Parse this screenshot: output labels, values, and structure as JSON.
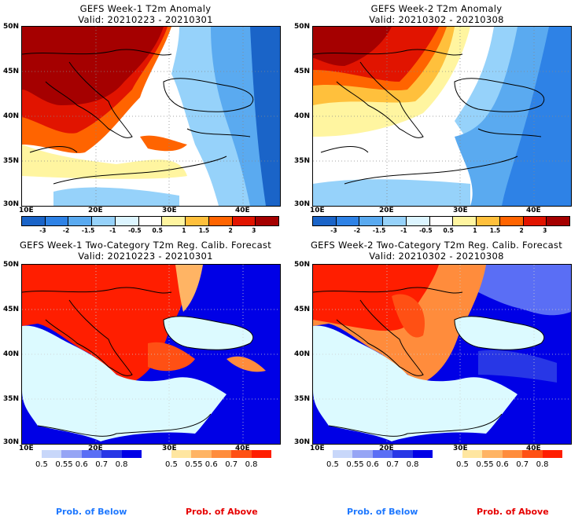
{
  "panels": [
    {
      "id": "week1-anomaly",
      "title": "GEFS Week-1 T2m Anomaly",
      "valid": "Valid: 20210223 - 20210301",
      "type": "anomaly"
    },
    {
      "id": "week2-anomaly",
      "title": "GEFS Week-2 T2m Anomaly",
      "valid": "Valid: 20210302 - 20210308",
      "type": "anomaly"
    },
    {
      "id": "week1-prob",
      "title": "GEFS Week-1 Two-Category T2m Reg. Calib. Forecast",
      "valid": "Valid: 20210223 - 20210301",
      "type": "probability"
    },
    {
      "id": "week2-prob",
      "title": "GEFS Week-2 Two-Category T2m Reg. Calib. Forecast",
      "valid": "Valid: 20210302 - 20210308",
      "type": "probability"
    }
  ],
  "axes": {
    "lat_labels": [
      "50N",
      "45N",
      "40N",
      "35N",
      "30N"
    ],
    "lon_labels": [
      "10E",
      "20E",
      "30E",
      "40E"
    ],
    "lat_range": [
      30,
      50
    ],
    "lon_range": [
      10,
      45
    ]
  },
  "anomaly_colorbar": {
    "labels": [
      "-3",
      "-2",
      "-1.5",
      "-1",
      "-0.5",
      "0.5",
      "1",
      "1.5",
      "2",
      "3"
    ],
    "colors": [
      "#1a64c8",
      "#2e82e6",
      "#5aaaf0",
      "#96d2fa",
      "#dcf5ff",
      "#ffffff",
      "#fff5a0",
      "#ffc03c",
      "#ff6400",
      "#e11400",
      "#a50000"
    ]
  },
  "prob_colorbars": {
    "below": {
      "labels": [
        "0.5",
        "0.55",
        "0.6",
        "0.7",
        "0.8"
      ],
      "colors": [
        "#c8d7fa",
        "#96a5f5",
        "#5a6ef5",
        "#2837e6",
        "#0000e6"
      ]
    },
    "above": {
      "labels": [
        "0.5",
        "0.55",
        "0.6",
        "0.7",
        "0.8"
      ],
      "colors": [
        "#ffe6a0",
        "#ffb464",
        "#ff8c3c",
        "#ff5014",
        "#ff1e00"
      ]
    }
  },
  "footer": {
    "below_label": "Prob. of Below",
    "above_label": "Prob. of Above",
    "below_color": "#1e78ff",
    "above_color": "#e60000"
  },
  "chart_data": [
    {
      "type": "heatmap",
      "title": "GEFS Week-1 T2m Anomaly",
      "subtitle": "Valid: 20210223 - 20210301",
      "xlabel": "Longitude",
      "ylabel": "Latitude",
      "xlim": [
        10,
        45
      ],
      "ylim": [
        30,
        50
      ],
      "summary": "Strong warm anomaly (>3) over central/eastern Europe and Balkans; cold anomaly (-1 to -3) over Black Sea, Turkey and eastern region"
    },
    {
      "type": "heatmap",
      "title": "GEFS Week-2 T2m Anomaly",
      "subtitle": "Valid: 20210302 - 20210308",
      "xlabel": "Longitude",
      "ylabel": "Latitude",
      "xlim": [
        10,
        45
      ],
      "ylim": [
        30,
        50
      ],
      "summary": "Warm anomaly (1 to 3) over Balkans and central Europe; cold anomaly (-0.5 to -3) over Turkey, Black Sea and Middle East"
    },
    {
      "type": "heatmap",
      "title": "GEFS Week-1 Two-Category T2m Reg. Calib. Forecast",
      "subtitle": "Valid: 20210223 - 20210301",
      "xlim": [
        10,
        45
      ],
      "ylim": [
        30,
        50
      ],
      "summary": "Prob. of Above >0.8 over Italy, Balkans and Eastern Europe; Prob. of Below >0.8 over eastern region and Turkey"
    },
    {
      "type": "heatmap",
      "title": "GEFS Week-2 Two-Category T2m Reg. Calib. Forecast",
      "subtitle": "Valid: 20210302 - 20210308",
      "xlim": [
        10,
        45
      ],
      "ylim": [
        30,
        50
      ],
      "summary": "Prob. of Above 0.6-0.8 over Balkans and central Europe; Prob. of Below 0.7-0.8 over Turkey and eastern region"
    }
  ]
}
